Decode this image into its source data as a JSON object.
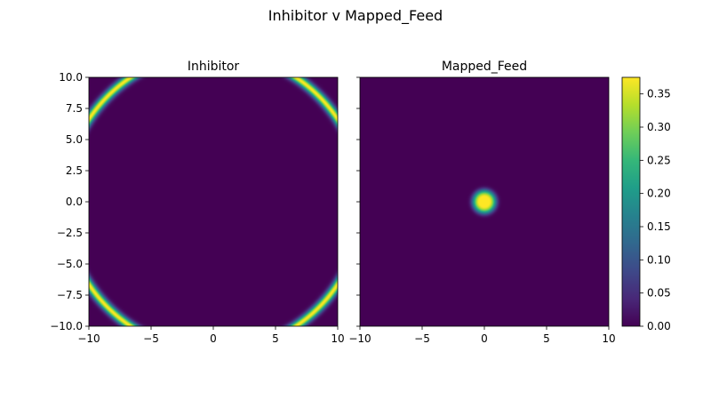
{
  "figure_title": "Inhibitor v Mapped_Feed",
  "chart_data": [
    {
      "type": "heatmap",
      "title": "Inhibitor",
      "xlim": [
        -10,
        10
      ],
      "ylim": [
        -10,
        10
      ],
      "xticks": [
        -10,
        -5,
        0,
        5,
        10
      ],
      "yticks": [
        -10.0,
        -7.5,
        -5.0,
        -2.5,
        0.0,
        2.5,
        5.0,
        7.5,
        10.0
      ],
      "xtick_labels": [
        "−10",
        "−5",
        "0",
        "5",
        "10"
      ],
      "ytick_labels": [
        "−10.0",
        "−7.5",
        "−5.0",
        "−2.5",
        "0.0",
        "2.5",
        "5.0",
        "7.5",
        "10.0"
      ],
      "field": {
        "shape": "ring",
        "center": [
          0,
          0
        ],
        "radius": 12.0,
        "width": 0.35,
        "peak": 0.375
      },
      "colormap": "viridis",
      "grid": false
    },
    {
      "type": "heatmap",
      "title": "Mapped_Feed",
      "xlim": [
        -10,
        10
      ],
      "ylim": [
        -10,
        10
      ],
      "xticks": [
        -10,
        -5,
        0,
        5,
        10
      ],
      "yticks": [
        -10.0,
        -7.5,
        -5.0,
        -2.5,
        0.0,
        2.5,
        5.0,
        7.5,
        10.0
      ],
      "xtick_labels": [
        "−10",
        "−5",
        "0",
        "5",
        "10"
      ],
      "ytick_labels": [],
      "field": {
        "shape": "gaussian_blob",
        "center": [
          0,
          0
        ],
        "sigma": 0.85,
        "plateau": 1.0,
        "peak": 0.375
      },
      "colormap": "viridis",
      "grid": false
    }
  ],
  "colorbar": {
    "range": [
      0.0,
      0.375
    ],
    "ticks": [
      0.0,
      0.05,
      0.1,
      0.15,
      0.2,
      0.25,
      0.3,
      0.35
    ],
    "tick_labels": [
      "0.00",
      "0.05",
      "0.10",
      "0.15",
      "0.20",
      "0.25",
      "0.30",
      "0.35"
    ],
    "colormap": "viridis"
  },
  "colors": {
    "viridis_stops": [
      "#440154",
      "#482878",
      "#3e4989",
      "#31688e",
      "#26828e",
      "#1f9e89",
      "#35b779",
      "#6ece58",
      "#b5de2b",
      "#fde725"
    ]
  }
}
